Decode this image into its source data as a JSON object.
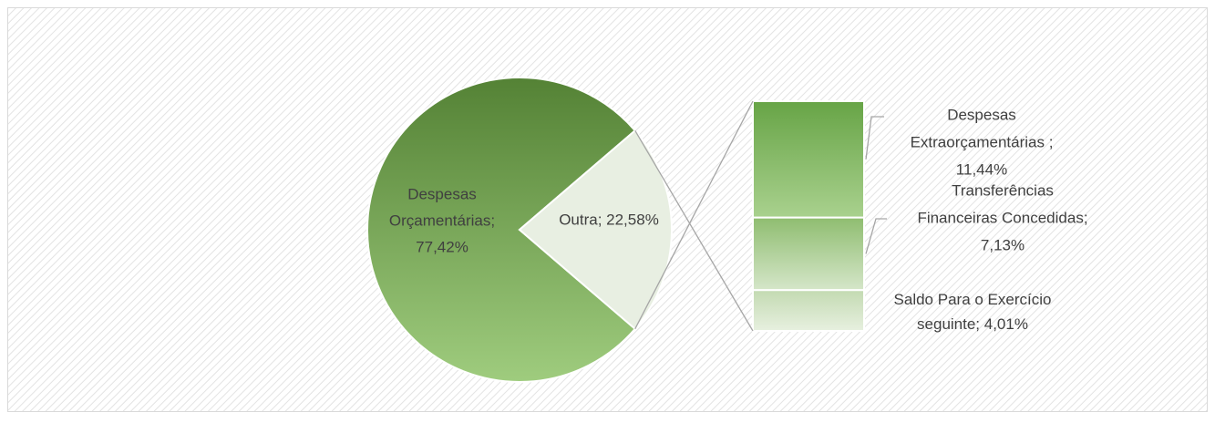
{
  "chart_data": {
    "type": "bar_of_pie",
    "pie": {
      "values": [
        77.42,
        22.58
      ],
      "value_labels": [
        [
          "Despesas",
          "Orçamentárias;",
          "77,42%"
        ],
        [
          "Outra; 22,58%"
        ]
      ],
      "colors": [
        [
          "#548235",
          "#9fcc7e"
        ],
        [
          "#e8efe2",
          "#e8efe2"
        ]
      ]
    },
    "bar": {
      "values": [
        11.44,
        7.13,
        4.01
      ],
      "value_labels": [
        [
          "Despesas",
          "Extraorçamentárias ;",
          "11,44%"
        ],
        [
          "Transferências",
          "Financeiras Concedidas;",
          "7,13%"
        ],
        [
          "Saldo Para o Exercício",
          "seguinte; 4,01%"
        ]
      ],
      "colors": [
        [
          "#67a446",
          "#a9d18e"
        ],
        [
          "#8fbd70",
          "#d5e6c9"
        ],
        [
          "#c3dab2",
          "#e7f0df"
        ]
      ]
    }
  }
}
